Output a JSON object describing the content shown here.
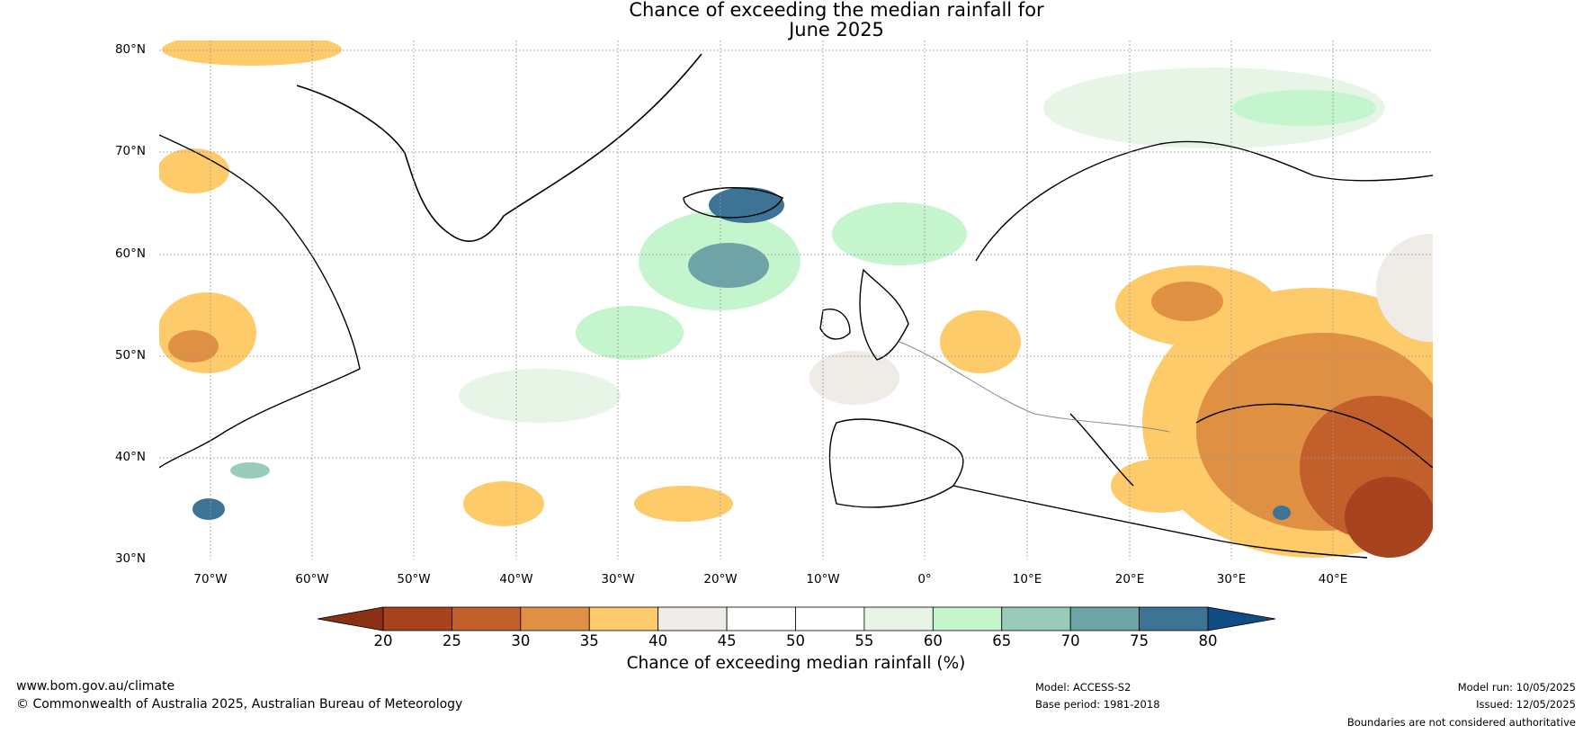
{
  "title": {
    "line1": "Chance of exceeding the median rainfall for",
    "line2": "June 2025"
  },
  "map": {
    "lat_labels": [
      "80°N",
      "70°N",
      "60°N",
      "50°N",
      "40°N",
      "30°N"
    ],
    "lon_labels": [
      "70°W",
      "60°W",
      "50°W",
      "40°W",
      "30°W",
      "20°W",
      "10°W",
      "0°",
      "10°E",
      "20°E",
      "30°E",
      "40°E"
    ]
  },
  "colorbar": {
    "ticks": [
      "20",
      "25",
      "30",
      "35",
      "40",
      "45",
      "50",
      "55",
      "60",
      "65",
      "70",
      "75",
      "80"
    ],
    "colors": [
      "#a8431f",
      "#c35f2a",
      "#e09043",
      "#fecb6a",
      "#efebe6",
      "#ffffff",
      "#ffffff",
      "#e6f5e6",
      "#c4f5cc",
      "#9acdb9",
      "#6ea4a8",
      "#3d7394",
      "#0f4d83"
    ],
    "label": "Chance of exceeding median rainfall (%)"
  },
  "footer": {
    "website": "www.bom.gov.au/climate",
    "copyright": "© Commonwealth of Australia 2025, Australian Bureau of Meteorology",
    "model": "Model: ACCESS-S2",
    "base_period": "Base period: 1981-2018",
    "model_run": "Model run: 10/05/2025",
    "issued": "Issued: 12/05/2025",
    "disclaimer": "Boundaries are not considered authoritative"
  }
}
